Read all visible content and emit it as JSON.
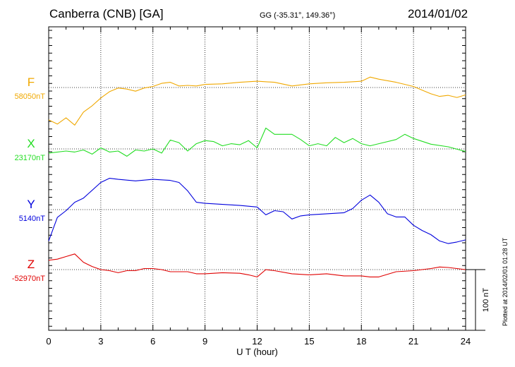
{
  "header": {
    "station": "Canberra (CNB)  [GA]",
    "coords": "GG (-35.31°, 149.36°)",
    "date": "2014/01/02"
  },
  "footer_note": "Plotted at 2014/02/01 01:28 UT",
  "chart_data": {
    "type": "line",
    "xlabel": "U T (hour)",
    "xlim": [
      0,
      24
    ],
    "x_ticks": [
      "0",
      "3",
      "6",
      "9",
      "12",
      "15",
      "18",
      "21",
      "24"
    ],
    "scale_bar": {
      "label": "100 nT",
      "nT": 100
    },
    "grid": true,
    "series": [
      {
        "name": "F",
        "baseline_label": "58050nT",
        "baseline_nT": 58050,
        "color": "#f0a800",
        "points": [
          [
            0,
            -62
          ],
          [
            0.5,
            -70
          ],
          [
            1,
            -58
          ],
          [
            1.5,
            -72
          ],
          [
            2,
            -47
          ],
          [
            2.5,
            -35
          ],
          [
            3,
            -20
          ],
          [
            3.5,
            -8
          ],
          [
            4,
            -1
          ],
          [
            4.5,
            -3
          ],
          [
            5,
            -7
          ],
          [
            5.5,
            -1
          ],
          [
            6,
            2
          ],
          [
            6.5,
            8
          ],
          [
            7,
            10
          ],
          [
            7.5,
            3
          ],
          [
            8,
            4
          ],
          [
            8.5,
            3
          ],
          [
            9,
            6
          ],
          [
            10,
            7
          ],
          [
            11,
            10
          ],
          [
            12,
            12
          ],
          [
            13,
            10
          ],
          [
            14,
            3
          ],
          [
            15,
            7
          ],
          [
            16,
            9
          ],
          [
            17,
            10
          ],
          [
            18,
            12
          ],
          [
            18.5,
            20
          ],
          [
            19,
            16
          ],
          [
            20,
            10
          ],
          [
            21,
            2
          ],
          [
            21.5,
            -5
          ],
          [
            22,
            -12
          ],
          [
            22.5,
            -17
          ],
          [
            23,
            -15
          ],
          [
            23.5,
            -19
          ],
          [
            24,
            -14
          ]
        ]
      },
      {
        "name": "X",
        "baseline_label": "23170nT",
        "baseline_nT": 23170,
        "color": "#22dd22",
        "points": [
          [
            0,
            -8
          ],
          [
            1,
            -4
          ],
          [
            1.5,
            -6
          ],
          [
            2,
            -2
          ],
          [
            2.5,
            -10
          ],
          [
            3,
            2
          ],
          [
            3.5,
            -6
          ],
          [
            4,
            -4
          ],
          [
            4.5,
            -14
          ],
          [
            5,
            -2
          ],
          [
            5.5,
            -4
          ],
          [
            6,
            0
          ],
          [
            6.5,
            -8
          ],
          [
            7,
            17
          ],
          [
            7.5,
            12
          ],
          [
            8,
            -4
          ],
          [
            8.5,
            10
          ],
          [
            9,
            16
          ],
          [
            9.5,
            14
          ],
          [
            10,
            6
          ],
          [
            10.5,
            10
          ],
          [
            11,
            8
          ],
          [
            11.5,
            16
          ],
          [
            12,
            2
          ],
          [
            12.5,
            40
          ],
          [
            13,
            28
          ],
          [
            14,
            28
          ],
          [
            14.5,
            18
          ],
          [
            15,
            6
          ],
          [
            15.5,
            10
          ],
          [
            16,
            6
          ],
          [
            16.5,
            22
          ],
          [
            17,
            12
          ],
          [
            17.5,
            20
          ],
          [
            18,
            10
          ],
          [
            18.5,
            6
          ],
          [
            19,
            10
          ],
          [
            20,
            18
          ],
          [
            20.5,
            28
          ],
          [
            21,
            20
          ],
          [
            22,
            9
          ],
          [
            23,
            4
          ],
          [
            24,
            -5
          ]
        ]
      },
      {
        "name": "Y",
        "baseline_label": "5140nT",
        "baseline_nT": 5140,
        "color": "#0000dd",
        "points": [
          [
            0,
            -60
          ],
          [
            0.5,
            -15
          ],
          [
            1,
            -2
          ],
          [
            1.5,
            14
          ],
          [
            2,
            22
          ],
          [
            3,
            52
          ],
          [
            3.5,
            60
          ],
          [
            4,
            58
          ],
          [
            5,
            55
          ],
          [
            6,
            58
          ],
          [
            7,
            56
          ],
          [
            7.5,
            52
          ],
          [
            8,
            36
          ],
          [
            8.5,
            14
          ],
          [
            9,
            12
          ],
          [
            10,
            10
          ],
          [
            11,
            8
          ],
          [
            12,
            5
          ],
          [
            12.5,
            -10
          ],
          [
            13,
            -2
          ],
          [
            13.5,
            -4
          ],
          [
            14,
            -18
          ],
          [
            14.5,
            -12
          ],
          [
            15,
            -10
          ],
          [
            16,
            -8
          ],
          [
            17,
            -6
          ],
          [
            17.5,
            2
          ],
          [
            18,
            18
          ],
          [
            18.5,
            28
          ],
          [
            19,
            14
          ],
          [
            19.5,
            -8
          ],
          [
            20,
            -14
          ],
          [
            20.5,
            -14
          ],
          [
            21,
            -30
          ],
          [
            21.5,
            -40
          ],
          [
            22,
            -48
          ],
          [
            22.5,
            -60
          ],
          [
            23,
            -65
          ],
          [
            23.5,
            -62
          ],
          [
            24,
            -58
          ]
        ]
      },
      {
        "name": "Z",
        "baseline_label": "-52970nT",
        "baseline_nT": -52970,
        "color": "#e00000",
        "points": [
          [
            0,
            18
          ],
          [
            0.5,
            20
          ],
          [
            1,
            25
          ],
          [
            1.5,
            30
          ],
          [
            2,
            14
          ],
          [
            2.5,
            6
          ],
          [
            3,
            0
          ],
          [
            3.5,
            -2
          ],
          [
            4,
            -6
          ],
          [
            4.5,
            -2
          ],
          [
            5,
            -2
          ],
          [
            5.5,
            2
          ],
          [
            6,
            2
          ],
          [
            6.5,
            0
          ],
          [
            7,
            -4
          ],
          [
            8,
            -4
          ],
          [
            8.5,
            -8
          ],
          [
            9,
            -8
          ],
          [
            10,
            -6
          ],
          [
            11,
            -7
          ],
          [
            11.5,
            -10
          ],
          [
            12,
            -14
          ],
          [
            12.5,
            0
          ],
          [
            13,
            -2
          ],
          [
            14,
            -8
          ],
          [
            15,
            -10
          ],
          [
            16,
            -8
          ],
          [
            17,
            -12
          ],
          [
            18,
            -12
          ],
          [
            18.5,
            -14
          ],
          [
            19,
            -14
          ],
          [
            20,
            -4
          ],
          [
            21,
            -2
          ],
          [
            22,
            2
          ],
          [
            22.5,
            5
          ],
          [
            23,
            4
          ],
          [
            24,
            0
          ]
        ]
      }
    ]
  }
}
